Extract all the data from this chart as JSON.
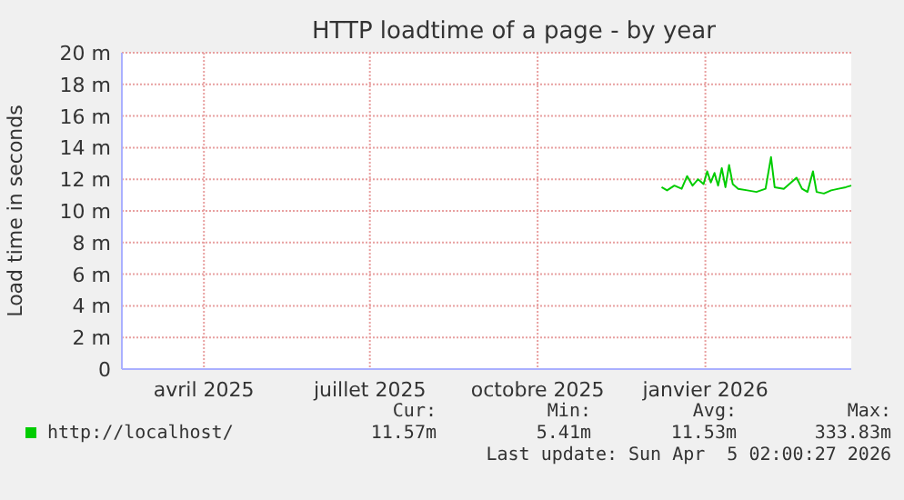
{
  "chart_data": {
    "type": "line",
    "title": "HTTP loadtime of a page - by year",
    "ylabel": "Load time in seconds",
    "x": [
      "2025-12-22",
      "2025-12-25",
      "2025-12-29",
      "2026-01-02",
      "2026-01-05",
      "2026-01-08",
      "2026-01-11",
      "2026-01-14",
      "2026-01-16",
      "2026-01-18",
      "2026-01-20",
      "2026-01-22",
      "2026-01-24",
      "2026-01-26",
      "2026-01-28",
      "2026-01-30",
      "2026-02-02",
      "2026-02-07",
      "2026-02-12",
      "2026-02-17",
      "2026-02-20",
      "2026-02-22",
      "2026-02-27",
      "2026-03-03",
      "2026-03-06",
      "2026-03-09",
      "2026-03-12",
      "2026-03-15",
      "2026-03-17",
      "2026-03-21",
      "2026-03-25",
      "2026-03-29",
      "2026-04-02",
      "2026-04-05"
    ],
    "series": [
      {
        "name": "http://localhost/",
        "color": "#00cc00",
        "values": [
          11.5,
          11.3,
          11.6,
          11.4,
          12.2,
          11.6,
          12.0,
          11.7,
          12.5,
          11.8,
          12.4,
          11.6,
          12.7,
          11.5,
          12.9,
          11.7,
          11.4,
          11.3,
          11.2,
          11.4,
          13.4,
          11.5,
          11.4,
          11.8,
          12.1,
          11.4,
          11.2,
          12.5,
          11.2,
          11.1,
          11.3,
          11.4,
          11.5,
          11.6
        ]
      }
    ],
    "xlim": [
      "2025-03-01",
      "2026-04-05"
    ],
    "xticks": [
      {
        "value": "2025-04-15",
        "label": "avril 2025"
      },
      {
        "value": "2025-07-15",
        "label": "juillet 2025"
      },
      {
        "value": "2025-10-15",
        "label": "octobre 2025"
      },
      {
        "value": "2026-01-15",
        "label": "janvier 2026"
      }
    ],
    "ylim": [
      0,
      20
    ],
    "yticks": [
      0,
      {
        "value": 2,
        "label": "2 m"
      },
      {
        "value": 4,
        "label": "4 m"
      },
      {
        "value": 6,
        "label": "6 m"
      },
      {
        "value": 8,
        "label": "8 m"
      },
      {
        "value": 10,
        "label": "10 m"
      },
      {
        "value": 12,
        "label": "12 m"
      },
      {
        "value": 14,
        "label": "14 m"
      },
      {
        "value": 16,
        "label": "16 m"
      },
      {
        "value": 18,
        "label": "18 m"
      },
      {
        "value": 20,
        "label": "20 m"
      }
    ],
    "grid": true,
    "legend": "bottom",
    "marker": "none",
    "line_style": "solid",
    "annotations": [
      "Cur:",
      "Min:",
      "Avg:",
      "Max:",
      "11.57m",
      "5.41m",
      "11.53m",
      "333.83m",
      "Last update: Sun Apr  5 02:00:27 2026"
    ]
  }
}
